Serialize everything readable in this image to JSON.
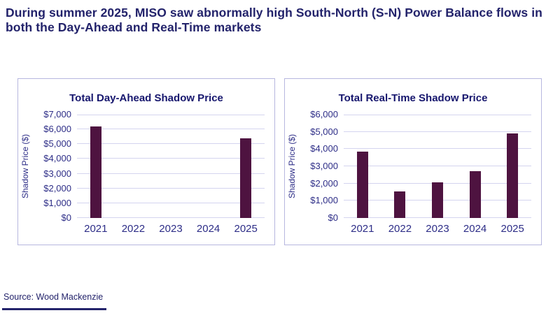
{
  "headline": "During summer 2025, MISO saw abnormally high South-North (S-N) Power Balance flows in both the Day-Ahead and Real-Time markets",
  "source": "Source: Wood Mackenzie",
  "colors": {
    "headline_text": "#23236B",
    "chart_title_text": "#17176E",
    "axis_text": "#2D2D87",
    "bar_fill": "#4E1340",
    "gridline": "#D4D4EF",
    "panel_border": "#B7B7DF",
    "background": "#FFFFFF"
  },
  "chart_data": [
    {
      "type": "bar",
      "title": "Total Day-Ahead Shadow Price",
      "ylabel": "Shadow Price ($)",
      "xlabel": "",
      "categories": [
        "2021",
        "2022",
        "2023",
        "2024",
        "2025"
      ],
      "values": [
        6200,
        0,
        0,
        0,
        5400
      ],
      "ylim": [
        0,
        7000
      ],
      "ytick_step": 1000,
      "ytick_labels": [
        "$0",
        "$1,000",
        "$2,000",
        "$3,000",
        "$4,000",
        "$5,000",
        "$6,000",
        "$7,000"
      ],
      "grid": true,
      "legend": false
    },
    {
      "type": "bar",
      "title": "Total Real-Time Shadow Price",
      "ylabel": "Shadow Price ($)",
      "xlabel": "",
      "categories": [
        "2021",
        "2022",
        "2023",
        "2024",
        "2025"
      ],
      "values": [
        3850,
        1550,
        2050,
        2700,
        4900
      ],
      "ylim": [
        0,
        6000
      ],
      "ytick_step": 1000,
      "ytick_labels": [
        "$0",
        "$1,000",
        "$2,000",
        "$3,000",
        "$4,000",
        "$5,000",
        "$6,000"
      ],
      "grid": true,
      "legend": false
    }
  ]
}
